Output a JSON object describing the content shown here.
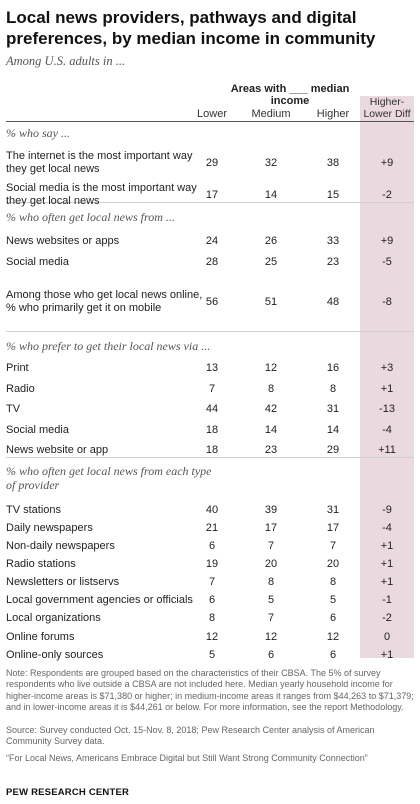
{
  "title": "Local news providers, pathways and digital preferences, by median income in community",
  "subtitle": "Among U.S. adults in ...",
  "header": {
    "group_label": "Areas with ___ median income",
    "columns": [
      "Lower",
      "Medium",
      "Higher"
    ],
    "diff_label": "Higher-Lower Diff"
  },
  "sections": [
    "% who say ...",
    "% who often get local news from ...",
    "% who prefer to get their local news via ...",
    "% who often get local news from each type of provider"
  ],
  "chart_data": {
    "type": "table",
    "title": "Local news providers, pathways and digital preferences, by median income in community",
    "columns": [
      "Lower",
      "Medium",
      "Higher",
      "Higher-Lower Diff"
    ],
    "rows": [
      {
        "section": 0,
        "label": "The internet is the most important way they get local news",
        "lower": "29",
        "medium": "32",
        "higher": "38",
        "diff": "+9"
      },
      {
        "section": 0,
        "label": "Social media is the most important way they get local news",
        "lower": "17",
        "medium": "14",
        "higher": "15",
        "diff": "-2"
      },
      {
        "section": 1,
        "label": "News websites or apps",
        "lower": "24",
        "medium": "26",
        "higher": "33",
        "diff": "+9"
      },
      {
        "section": 1,
        "label": "Social media",
        "lower": "28",
        "medium": "25",
        "higher": "23",
        "diff": "-5"
      },
      {
        "section": 1,
        "label": "Among those who get local news online, % who primarily get it on mobile",
        "lower": "56",
        "medium": "51",
        "higher": "48",
        "diff": "-8"
      },
      {
        "section": 2,
        "label": "Print",
        "lower": "13",
        "medium": "12",
        "higher": "16",
        "diff": "+3"
      },
      {
        "section": 2,
        "label": "Radio",
        "lower": "7",
        "medium": "8",
        "higher": "8",
        "diff": "+1"
      },
      {
        "section": 2,
        "label": "TV",
        "lower": "44",
        "medium": "42",
        "higher": "31",
        "diff": "-13"
      },
      {
        "section": 2,
        "label": "Social media",
        "lower": "18",
        "medium": "14",
        "higher": "14",
        "diff": "-4"
      },
      {
        "section": 2,
        "label": "News website or app",
        "lower": "18",
        "medium": "23",
        "higher": "29",
        "diff": "+11"
      },
      {
        "section": 3,
        "label": "TV stations",
        "lower": "40",
        "medium": "39",
        "higher": "31",
        "diff": "-9"
      },
      {
        "section": 3,
        "label": "Daily newspapers",
        "lower": "21",
        "medium": "17",
        "higher": "17",
        "diff": "-4"
      },
      {
        "section": 3,
        "label": "Non-daily newspapers",
        "lower": "6",
        "medium": "7",
        "higher": "7",
        "diff": "+1"
      },
      {
        "section": 3,
        "label": "Radio stations",
        "lower": "19",
        "medium": "20",
        "higher": "20",
        "diff": "+1"
      },
      {
        "section": 3,
        "label": "Newsletters or listservs",
        "lower": "7",
        "medium": "8",
        "higher": "8",
        "diff": "+1"
      },
      {
        "section": 3,
        "label": "Local government agencies or officials",
        "lower": "6",
        "medium": "5",
        "higher": "5",
        "diff": "-1"
      },
      {
        "section": 3,
        "label": "Local organizations",
        "lower": "8",
        "medium": "7",
        "higher": "6",
        "diff": "-2"
      },
      {
        "section": 3,
        "label": "Online forums",
        "lower": "12",
        "medium": "12",
        "higher": "12",
        "diff": "0"
      },
      {
        "section": 3,
        "label": "Online-only sources",
        "lower": "5",
        "medium": "6",
        "higher": "6",
        "diff": "+1"
      }
    ]
  },
  "notes": {
    "note": "Note: Respondents are grouped based on the characteristics of their CBSA. The 5% of survey respondents who live outside a CBSA are not included here. Median yearly household income for higher-income areas is $71,380 or higher; in medium-income areas it ranges from $44,263 to $71,379; and in lower-income areas it is $44,261 or below. For more information, see the report Methodology.",
    "source": "Source: Survey conducted Oct. 15-Nov. 8, 2018; Pew Research Center analysis of American Community Survey data.",
    "report": "“For Local News, Americans Embrace Digital but Still Want Strong Community Connection”"
  },
  "brand": "PEW RESEARCH CENTER",
  "colors": {
    "diff_band": "#ead9de",
    "text": "#222222",
    "muted": "#666666"
  }
}
